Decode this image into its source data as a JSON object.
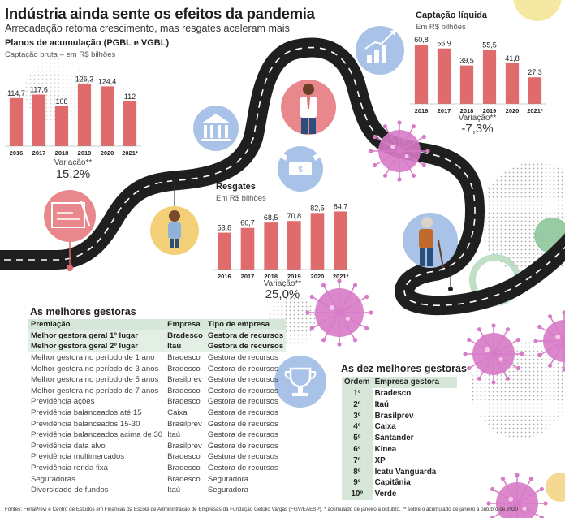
{
  "title": "Indústria ainda sente os efeitos da pandemia",
  "subtitle": "Arrecadação retoma crescimento, mas resgates aceleram mais",
  "colors": {
    "bar": "#e06b6c",
    "road": "#1f1f1f",
    "highlight_row": "#e3eee4",
    "header_row": "#d6e6d8",
    "circle_blue": "#a9c3e8",
    "circle_yellow": "#f3cf78",
    "circle_pink": "#e9888c",
    "virus": "#d77ac7"
  },
  "icons": [
    "blueprint-icon",
    "student-icon",
    "bank-icon",
    "money-wings-icon",
    "businessman-icon",
    "growth-chart-icon",
    "elderly-icon",
    "trophy-icon",
    "virus-icon"
  ],
  "chart_data": [
    {
      "type": "bar",
      "title": "Planos de acumulação (PGBL e VGBL)",
      "subtitle": "Captação bruta – em R$ bilhões",
      "categories": [
        "2016",
        "2017",
        "2018",
        "2019",
        "2020",
        "2021*"
      ],
      "values": [
        114.7,
        117.6,
        108,
        126.3,
        124.4,
        112
      ],
      "value_labels": [
        "114,7",
        "117,6",
        "108",
        "126,3",
        "124,4",
        "112"
      ],
      "ylim": [
        75,
        130
      ],
      "variation_label": "Variação**",
      "variation_value": "15,2%"
    },
    {
      "type": "bar",
      "title": "Captação líquida",
      "subtitle": "Em R$ bilhões",
      "categories": [
        "2016",
        "2017",
        "2018",
        "2019",
        "2020",
        "2021*"
      ],
      "values": [
        60.8,
        56.9,
        39.5,
        55.5,
        41.8,
        27.3
      ],
      "value_labels": [
        "60,8",
        "56,9",
        "39,5",
        "55,5",
        "41,8",
        "27,3"
      ],
      "ylim": [
        0,
        65
      ],
      "variation_label": "Variação**",
      "variation_value": "-7,3%"
    },
    {
      "type": "bar",
      "title": "Resgates",
      "subtitle": "Em R$ bilhões",
      "categories": [
        "2016",
        "2017",
        "2018",
        "2019",
        "2020",
        "2021*"
      ],
      "values": [
        53.8,
        60.7,
        68.5,
        70.8,
        82.5,
        84.7
      ],
      "value_labels": [
        "53,8",
        "60,7",
        "68,5",
        "70,8",
        "82,5",
        "84,7"
      ],
      "ylim": [
        0,
        90
      ],
      "variation_label": "Variação**",
      "variation_value": "25,0%"
    }
  ],
  "gestoras": {
    "title": "As melhores gestoras",
    "headers": [
      "Premiação",
      "Empresa",
      "Tipo de empresa"
    ],
    "rows": [
      [
        "Melhor gestora geral 1º lugar",
        "Bradesco",
        "Gestora de recursos"
      ],
      [
        "Melhor gestora geral 2º lugar",
        "Itaú",
        "Gestora de recursos"
      ],
      [
        "Melhor gestora no período de 1 ano",
        "Bradesco",
        "Gestora de recursos"
      ],
      [
        "Melhor gestora no período de 3 anos",
        "Bradesco",
        "Gestora de recursos"
      ],
      [
        "Melhor gestora no período de 5 anos",
        "Brasilprev",
        "Gestora de recursos"
      ],
      [
        "Melhor gestora no período de 7 anos",
        "Bradesco",
        "Gestora de recursos"
      ],
      [
        "Previdência ações",
        "Bradesco",
        "Gestora de recursos"
      ],
      [
        "Previdência balanceados até 15",
        "Caixa",
        "Gestora de recursos"
      ],
      [
        "Previdência balanceados 15-30",
        "Brasilprev",
        "Gestora de recursos"
      ],
      [
        "Previdência balanceados acima de 30",
        "Itaú",
        "Gestora de recursos"
      ],
      [
        "Previdência data alvo",
        "Brasilprev",
        "Gestora de recursos"
      ],
      [
        "Previdência multimercados",
        "Bradesco",
        "Gestora de recursos"
      ],
      [
        "Previdência renda fixa",
        "Bradesco",
        "Gestora de recursos"
      ],
      [
        "Seguradoras",
        "Bradesco",
        "Seguradora"
      ],
      [
        "Diversidade de fundos",
        "Itaú",
        "Seguradora"
      ]
    ]
  },
  "top10": {
    "title": "As dez melhores gestoras",
    "headers": [
      "Ordem",
      "Empresa gestora"
    ],
    "rows": [
      [
        "1º",
        "Bradesco"
      ],
      [
        "2º",
        "Itaú"
      ],
      [
        "3º",
        "Brasilprev"
      ],
      [
        "4º",
        "Caixa"
      ],
      [
        "5º",
        "Santander"
      ],
      [
        "6º",
        "Kinea"
      ],
      [
        "7º",
        "XP"
      ],
      [
        "8º",
        "Icatu Vanguarda"
      ],
      [
        "9º",
        "Capitânia"
      ],
      [
        "10º",
        "Verde"
      ]
    ]
  },
  "footer": "Fontes: FenaPrevi e Centro de Estudos em Finanças da Escola de Administração de Empresas da Fundação Getúlio Vargas (FGV/EAESP). * acumulado de janeiro a outubro. ** sobre o acumulado de janeiro a outubro de 2020"
}
